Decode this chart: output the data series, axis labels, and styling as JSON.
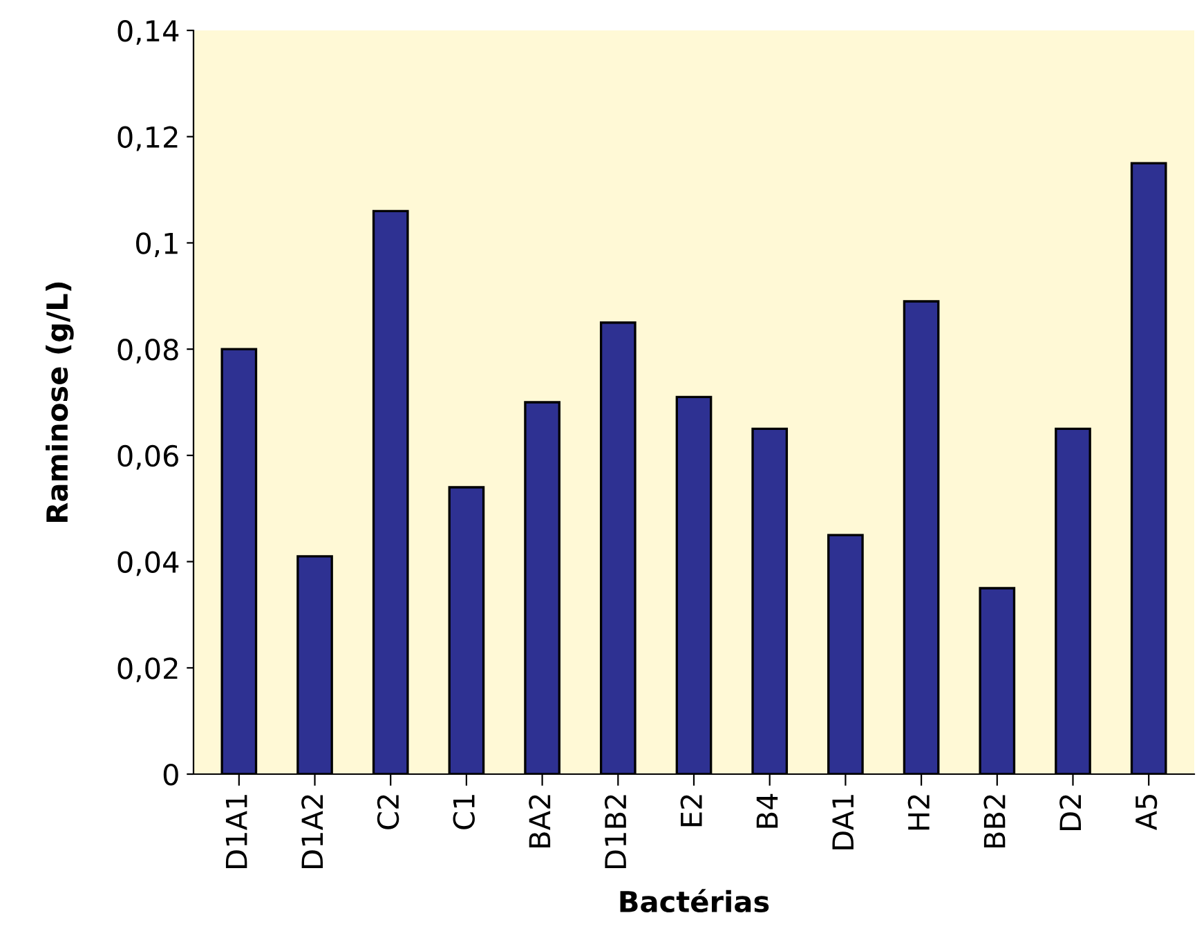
{
  "chart_data": {
    "type": "bar",
    "xlabel": "Bactérias",
    "ylabel": "Raminose (g/L)",
    "categories": [
      "D1A1",
      "D1A2",
      "C2",
      "C1",
      "BA2",
      "D1B2",
      "E2",
      "B4",
      "DA1",
      "H2",
      "BB2",
      "D2",
      "A5"
    ],
    "values": [
      0.08,
      0.041,
      0.106,
      0.054,
      0.07,
      0.085,
      0.071,
      0.065,
      0.045,
      0.089,
      0.035,
      0.065,
      0.115
    ],
    "color": "#2e3192",
    "ylim": [
      0,
      0.14
    ],
    "yticks": [
      {
        "value": 0,
        "label": "0"
      },
      {
        "value": 0.02,
        "label": "0,02"
      },
      {
        "value": 0.04,
        "label": "0,04"
      },
      {
        "value": 0.06,
        "label": "0,06"
      },
      {
        "value": 0.08,
        "label": "0,08"
      },
      {
        "value": 0.1,
        "label": "0,1"
      },
      {
        "value": 0.12,
        "label": "0,12"
      },
      {
        "value": 0.14,
        "label": "0,14"
      }
    ],
    "grid": false,
    "legend": false
  }
}
